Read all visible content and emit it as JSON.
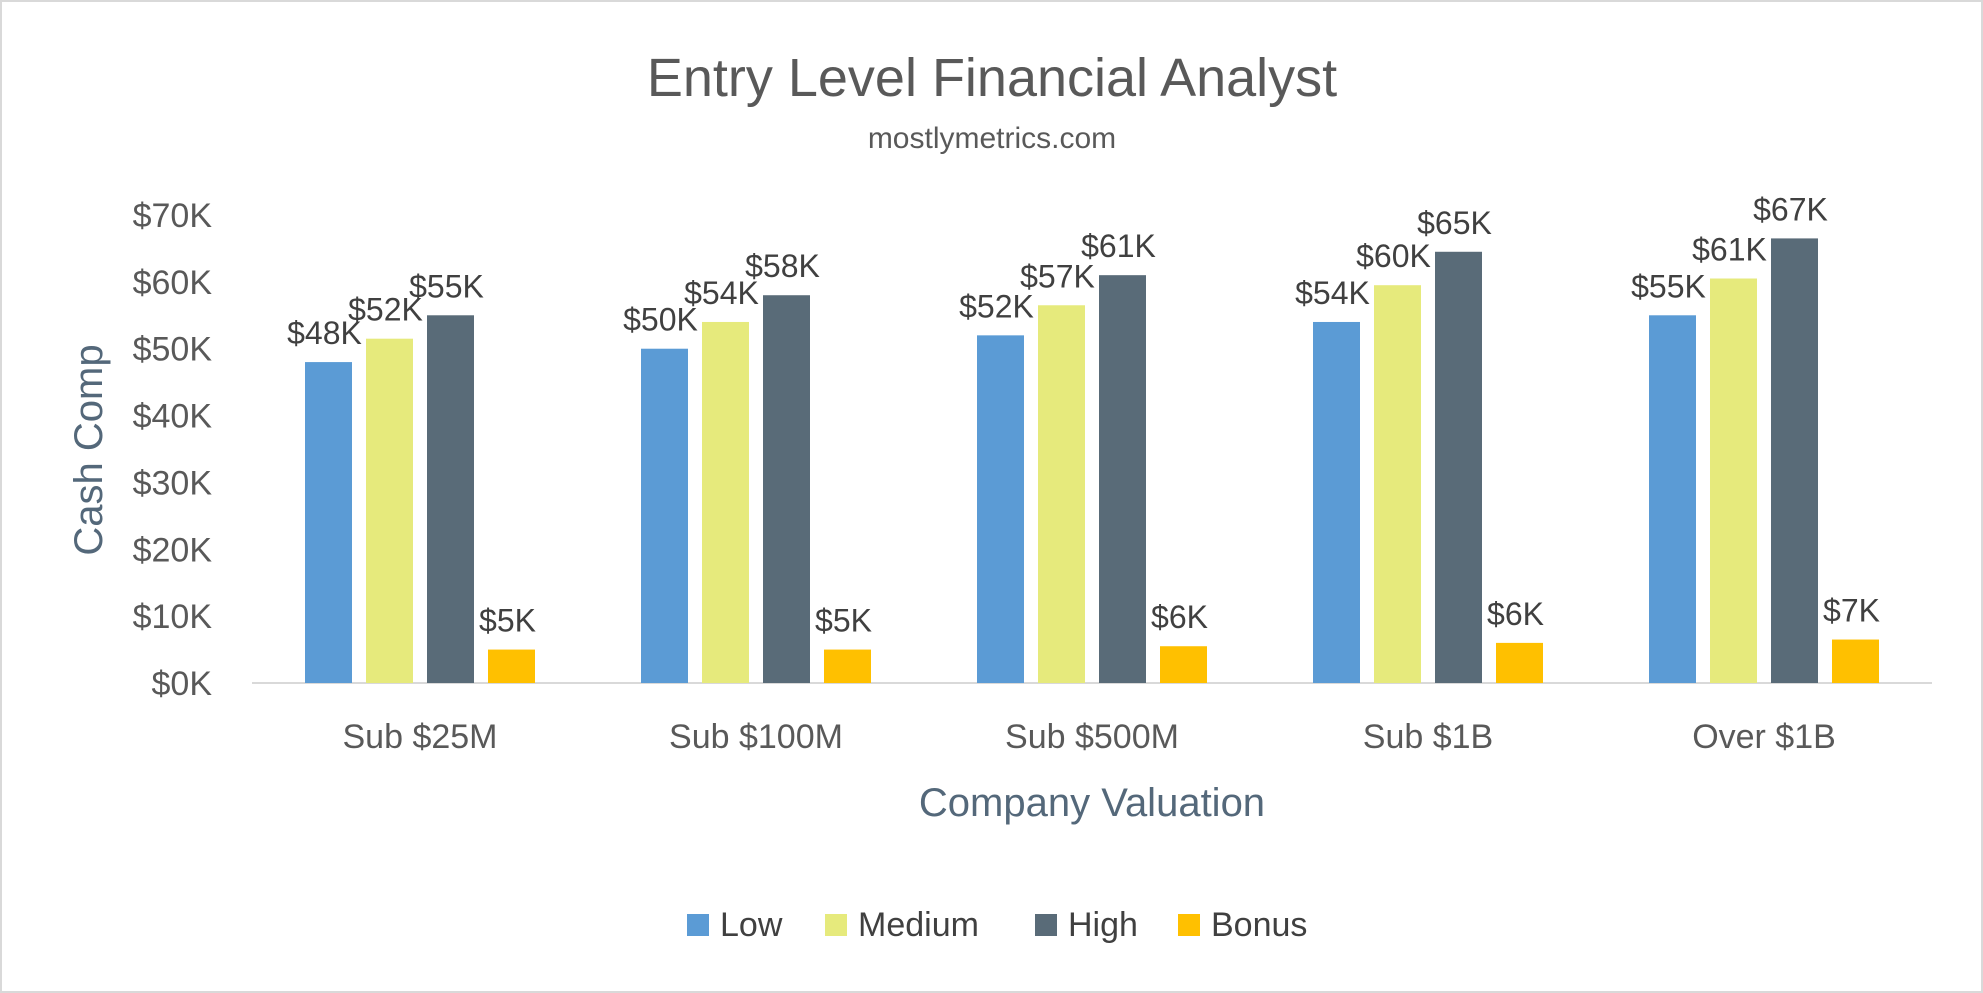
{
  "chart_data": {
    "type": "bar",
    "title": "Entry Level Financial Analyst",
    "subtitle": "mostlymetrics.com",
    "xlabel": "Company Valuation",
    "ylabel": "Cash Comp",
    "categories": [
      "Sub $25M",
      "Sub $100M",
      "Sub $500M",
      "Sub $1B",
      "Over $1B"
    ],
    "ylim": [
      0,
      70000
    ],
    "yticks": [
      0,
      10000,
      20000,
      30000,
      40000,
      50000,
      60000,
      70000
    ],
    "ytick_labels": [
      "$0K",
      "$10K",
      "$20K",
      "$30K",
      "$40K",
      "$50K",
      "$60K",
      "$70K"
    ],
    "grid": false,
    "legend_position": "bottom",
    "series": [
      {
        "name": "Low",
        "color": "#5b9bd5",
        "values": [
          48000,
          50000,
          52000,
          54000,
          55000
        ],
        "labels": [
          "$48K",
          "$50K",
          "$52K",
          "$54K",
          "$55K"
        ]
      },
      {
        "name": "Medium",
        "color": "#e6ea7c",
        "values": [
          51500,
          54000,
          56500,
          59500,
          60500
        ],
        "labels": [
          "$52K",
          "$54K",
          "$57K",
          "$60K",
          "$61K"
        ]
      },
      {
        "name": "High",
        "color": "#596b78",
        "values": [
          55000,
          58000,
          61000,
          64500,
          66500
        ],
        "labels": [
          "$55K",
          "$58K",
          "$61K",
          "$65K",
          "$67K"
        ]
      },
      {
        "name": "Bonus",
        "color": "#ffc000",
        "values": [
          5000,
          5000,
          5500,
          6000,
          6500
        ],
        "labels": [
          "$5K",
          "$5K",
          "$6K",
          "$6K",
          "$7K"
        ]
      }
    ]
  }
}
